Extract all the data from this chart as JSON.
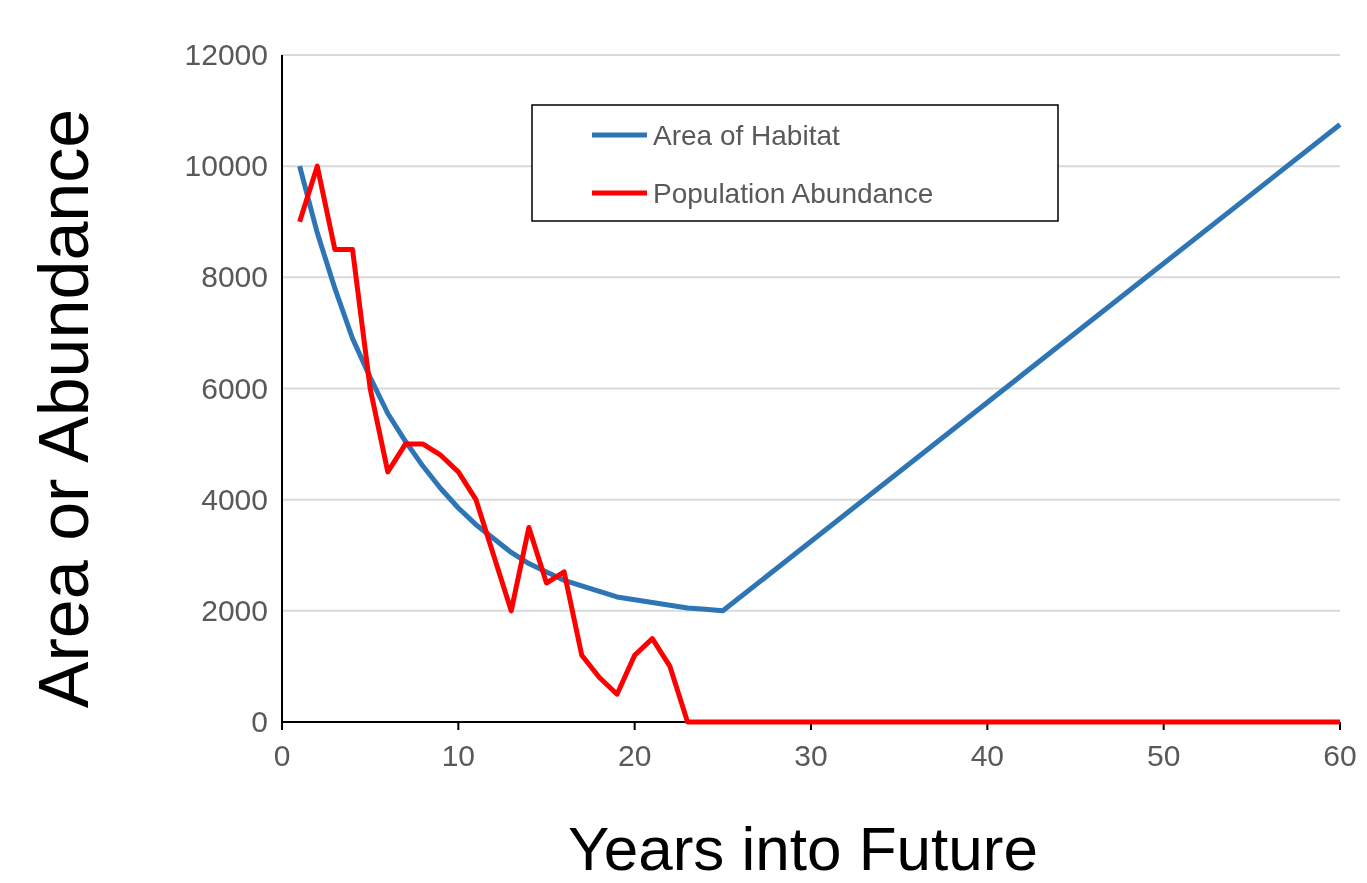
{
  "chart_data": {
    "type": "line",
    "xlabel": "Years into Future",
    "ylabel": "Area or Abundance",
    "xlim": [
      0,
      60
    ],
    "xticks": [
      0,
      10,
      20,
      30,
      40,
      50,
      60
    ],
    "ylim": [
      0,
      12000
    ],
    "yticks": [
      0,
      2000,
      4000,
      6000,
      8000,
      10000,
      12000
    ],
    "grid": "y",
    "legend": "top",
    "marker": "none",
    "line_style": "solid",
    "series": [
      {
        "name": "Area of Habitat",
        "color": "#2e75b6",
        "x": [
          1,
          2,
          3,
          4,
          5,
          6,
          7,
          8,
          9,
          10,
          11,
          12,
          13,
          14,
          15,
          16,
          17,
          18,
          19,
          20,
          21,
          22,
          23,
          24,
          25,
          60
        ],
        "values": [
          10000,
          8800,
          7800,
          6900,
          6200,
          5550,
          5050,
          4600,
          4200,
          3850,
          3550,
          3300,
          3050,
          2850,
          2700,
          2550,
          2450,
          2350,
          2250,
          2200,
          2150,
          2100,
          2050,
          2030,
          2000,
          10750
        ]
      },
      {
        "name": "Population Abundance",
        "color": "#ff0000",
        "x": [
          1,
          2,
          3,
          4,
          5,
          6,
          7,
          8,
          9,
          10,
          11,
          12,
          13,
          14,
          15,
          16,
          17,
          18,
          19,
          20,
          21,
          22,
          23,
          60
        ],
        "values": [
          9000,
          10000,
          8500,
          8500,
          6000,
          4500,
          5000,
          5000,
          4800,
          4500,
          4000,
          3000,
          2000,
          3500,
          2500,
          2700,
          1200,
          800,
          500,
          1200,
          1500,
          1000,
          0,
          0
        ]
      }
    ]
  }
}
